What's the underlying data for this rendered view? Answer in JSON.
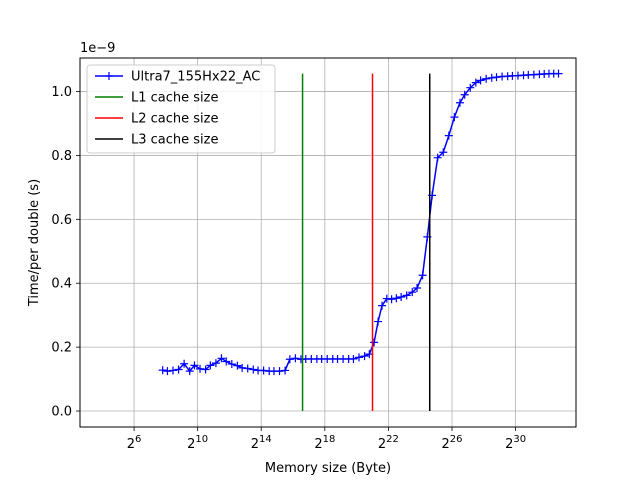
{
  "chart_data": {
    "type": "line",
    "xlabel": "Memory size (Byte)",
    "ylabel": "Time/per double (s)",
    "offset_text": "1e−9",
    "x_scale": "log2",
    "xlim_exp": [
      2.6,
      33.8
    ],
    "ylim": [
      -0.05,
      1.105
    ],
    "x_ticks": [
      {
        "exp": 6,
        "base": "2",
        "sup": "6"
      },
      {
        "exp": 10,
        "base": "2",
        "sup": "10"
      },
      {
        "exp": 14,
        "base": "2",
        "sup": "14"
      },
      {
        "exp": 18,
        "base": "2",
        "sup": "18"
      },
      {
        "exp": 22,
        "base": "2",
        "sup": "22"
      },
      {
        "exp": 26,
        "base": "2",
        "sup": "26"
      },
      {
        "exp": 30,
        "base": "2",
        "sup": "30"
      }
    ],
    "y_ticks": [
      {
        "value": 0.0,
        "label": "0.0"
      },
      {
        "value": 0.2,
        "label": "0.2"
      },
      {
        "value": 0.4,
        "label": "0.4"
      },
      {
        "value": 0.6,
        "label": "0.6"
      },
      {
        "value": 0.8,
        "label": "0.8"
      },
      {
        "value": 1.0,
        "label": "1.0"
      }
    ],
    "grid": true,
    "legend_position": "upper-left",
    "series": [
      {
        "name": "Ultra7_155Hx22_AC",
        "color": "#0000ff",
        "marker": "plus",
        "points": [
          [
            7.8,
            0.128
          ],
          [
            8.1,
            0.125
          ],
          [
            8.45,
            0.127
          ],
          [
            8.8,
            0.13
          ],
          [
            9.15,
            0.148
          ],
          [
            9.5,
            0.125
          ],
          [
            9.8,
            0.143
          ],
          [
            10.15,
            0.132
          ],
          [
            10.5,
            0.13
          ],
          [
            10.8,
            0.143
          ],
          [
            11.15,
            0.15
          ],
          [
            11.5,
            0.165
          ],
          [
            11.8,
            0.155
          ],
          [
            12.15,
            0.147
          ],
          [
            12.5,
            0.142
          ],
          [
            12.8,
            0.135
          ],
          [
            13.15,
            0.133
          ],
          [
            13.5,
            0.13
          ],
          [
            13.8,
            0.127
          ],
          [
            14.15,
            0.127
          ],
          [
            14.5,
            0.125
          ],
          [
            14.8,
            0.125
          ],
          [
            15.15,
            0.125
          ],
          [
            15.5,
            0.127
          ],
          [
            15.8,
            0.162
          ],
          [
            16.15,
            0.165
          ],
          [
            16.5,
            0.162
          ],
          [
            16.8,
            0.163
          ],
          [
            17.15,
            0.163
          ],
          [
            17.5,
            0.163
          ],
          [
            17.8,
            0.163
          ],
          [
            18.15,
            0.163
          ],
          [
            18.5,
            0.163
          ],
          [
            18.8,
            0.163
          ],
          [
            19.15,
            0.163
          ],
          [
            19.5,
            0.163
          ],
          [
            19.8,
            0.163
          ],
          [
            20.15,
            0.168
          ],
          [
            20.5,
            0.172
          ],
          [
            20.8,
            0.178
          ],
          [
            21.1,
            0.215
          ],
          [
            21.35,
            0.28
          ],
          [
            21.6,
            0.33
          ],
          [
            21.9,
            0.352
          ],
          [
            22.2,
            0.35
          ],
          [
            22.5,
            0.353
          ],
          [
            22.8,
            0.357
          ],
          [
            23.15,
            0.362
          ],
          [
            23.5,
            0.372
          ],
          [
            23.8,
            0.385
          ],
          [
            24.15,
            0.425
          ],
          [
            24.45,
            0.545
          ],
          [
            24.75,
            0.675
          ],
          [
            25.1,
            0.793
          ],
          [
            25.45,
            0.81
          ],
          [
            25.8,
            0.862
          ],
          [
            26.15,
            0.92
          ],
          [
            26.5,
            0.965
          ],
          [
            26.8,
            0.99
          ],
          [
            27.15,
            1.012
          ],
          [
            27.5,
            1.028
          ],
          [
            27.8,
            1.035
          ],
          [
            28.15,
            1.04
          ],
          [
            28.5,
            1.043
          ],
          [
            28.8,
            1.045
          ],
          [
            29.15,
            1.047
          ],
          [
            29.5,
            1.048
          ],
          [
            29.8,
            1.049
          ],
          [
            30.15,
            1.05
          ],
          [
            30.5,
            1.051
          ],
          [
            30.8,
            1.052
          ],
          [
            31.15,
            1.053
          ],
          [
            31.5,
            1.054
          ],
          [
            31.8,
            1.055
          ],
          [
            32.1,
            1.056
          ],
          [
            32.4,
            1.056
          ],
          [
            32.7,
            1.056
          ]
        ]
      },
      {
        "name": "L1 cache size",
        "color": "#008000",
        "x_exp": 16.6,
        "y_range": [
          0,
          1.056
        ]
      },
      {
        "name": "L2 cache size",
        "color": "#ff0000",
        "x_exp": 21.0,
        "y_range": [
          0,
          1.056
        ]
      },
      {
        "name": "L3 cache size",
        "color": "#000000",
        "x_exp": 24.6,
        "y_range": [
          0,
          1.056
        ]
      }
    ]
  }
}
